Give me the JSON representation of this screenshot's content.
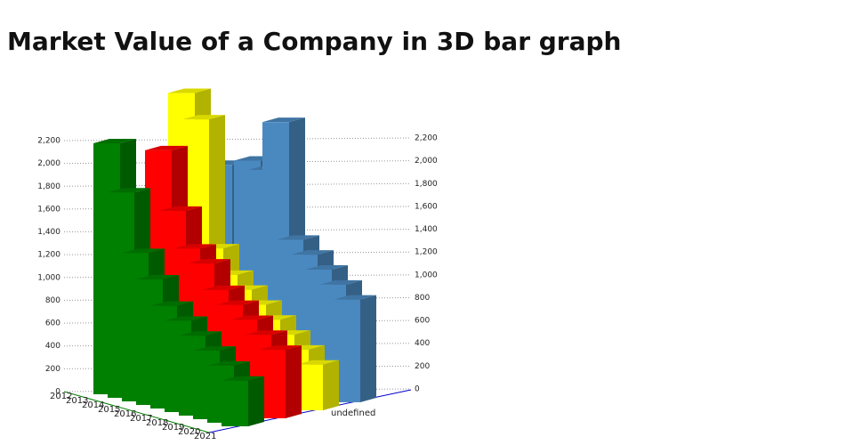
{
  "chart_data": {
    "type": "bar3d",
    "title": "Market Value of a Company in 3D bar graph",
    "categories": [
      "2012",
      "2013",
      "2014",
      "2015",
      "2016",
      "2017",
      "2018",
      "2019",
      "2020",
      "2021"
    ],
    "series_label": "undefined",
    "series": [
      {
        "color": "#008000",
        "values": [
          2200,
          1800,
          1300,
          1100,
          900,
          800,
          700,
          600,
          500,
          400
        ]
      },
      {
        "color": "#ff0000",
        "values": [
          700,
          2100,
          1600,
          1300,
          1200,
          1000,
          900,
          800,
          700,
          600
        ]
      },
      {
        "color": "#ffff00",
        "values": [
          2500,
          2300,
          1200,
          1000,
          900,
          800,
          700,
          600,
          500,
          400
        ]
      },
      {
        "color": "#4a89c0",
        "values": [
          1800,
          1000,
          1900,
          1850,
          2300,
          1300,
          1200,
          1100,
          1000,
          900
        ]
      }
    ],
    "ylim": [
      0,
      2200
    ],
    "yticks": [
      0,
      200,
      400,
      600,
      800,
      {
        "value": 1000,
        "label": "1,000"
      },
      {
        "value": 1200,
        "label": "1,200"
      },
      {
        "value": 1400,
        "label": "1,400"
      },
      {
        "value": 1600,
        "label": "1,600"
      },
      {
        "value": 1800,
        "label": "1,800"
      },
      {
        "value": 2000,
        "label": "2,000"
      },
      {
        "value": 2200,
        "label": "2,200"
      }
    ],
    "grid": true
  }
}
